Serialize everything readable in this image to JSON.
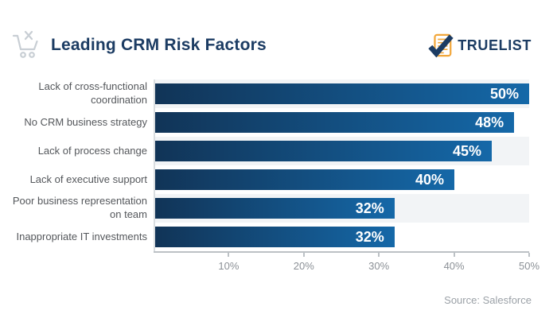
{
  "header": {
    "title": "Leading CRM Risk Factors",
    "logo": {
      "text": "TRUELIST",
      "icon": "checklist-check-icon",
      "orange": "#F2A73B",
      "navy": "#1C3C63"
    }
  },
  "chart_data": {
    "type": "bar",
    "orientation": "horizontal",
    "title": "Leading CRM Risk Factors",
    "categories": [
      "Lack of cross-functional coordination",
      "No CRM business strategy",
      "Lack of process change",
      "Lack of executive support",
      "Poor business representation on team",
      "Inappropriate IT investments"
    ],
    "values": [
      50,
      48,
      45,
      40,
      32,
      32
    ],
    "value_labels": [
      "50%",
      "48%",
      "45%",
      "40%",
      "32%",
      "32%"
    ],
    "xlim": [
      0,
      50
    ],
    "x_tick_values": [
      10,
      20,
      30,
      40,
      50
    ],
    "x_tick_labels": [
      "10%",
      "20%",
      "30%",
      "40%",
      "50%"
    ],
    "grid": false,
    "legend": false,
    "striped_rows": [
      0,
      2,
      4
    ],
    "colors": {
      "bar_gradient_start": "#113457",
      "bar_gradient_end": "#1568A8",
      "row_stripe": "#F2F4F6",
      "value_label": "#FFFFFF",
      "category_label": "#54575B",
      "axis": "#BCC1C5",
      "tick_label": "#8B9096"
    }
  },
  "footer": {
    "source": "Source: Salesforce"
  }
}
